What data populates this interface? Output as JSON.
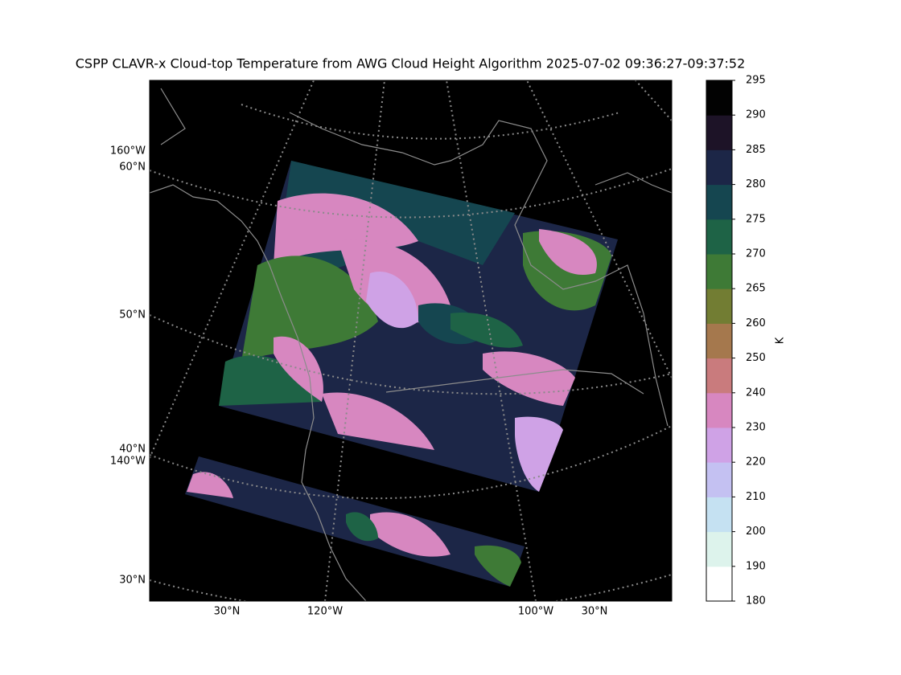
{
  "title": "CSPP CLAVR-x Cloud-top Temperature from AWG Cloud Height Algorithm 2025-07-02 09:36:27-09:37:52",
  "map": {
    "left_labels": [
      "160°W",
      "60°N",
      "50°N",
      "40°N",
      "140°W",
      "30°N"
    ],
    "bottom_labels": [
      "30°N",
      "120°W",
      "100°W",
      "30°N"
    ]
  },
  "colorbar": {
    "label": "K",
    "ticks": [
      180,
      190,
      200,
      210,
      220,
      230,
      240,
      250,
      260,
      265,
      270,
      275,
      280,
      285,
      290,
      295
    ],
    "colors": [
      "#ffffff",
      "#ddf3ec",
      "#c5e1f2",
      "#c4c1f2",
      "#cfa2e6",
      "#d787c0",
      "#c97b7d",
      "#a5784d",
      "#727d33",
      "#3e7a36",
      "#1e6346",
      "#154650",
      "#1c2647",
      "#1d1327",
      "#020202"
    ]
  }
}
